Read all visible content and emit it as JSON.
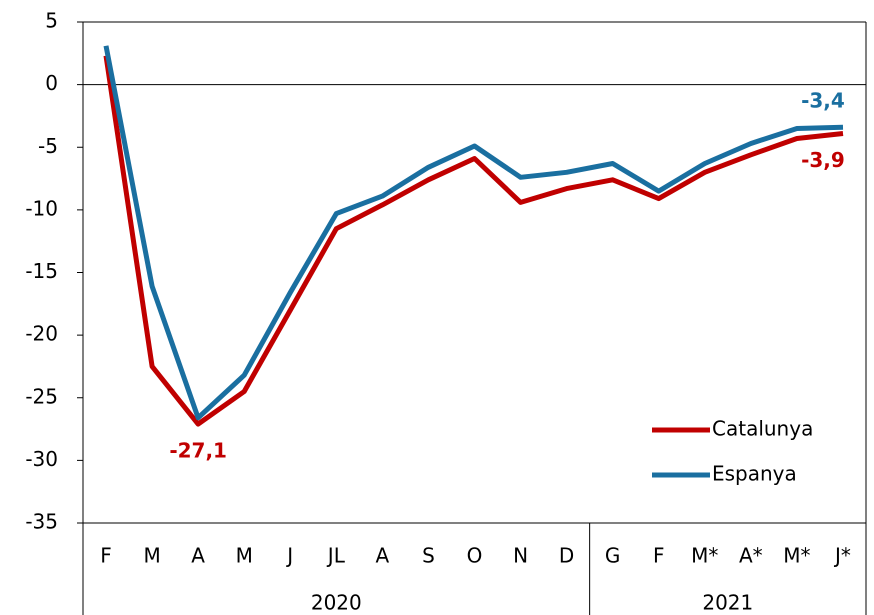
{
  "chart_data": {
    "type": "line",
    "categories": [
      "F",
      "M",
      "A",
      "M",
      "J",
      "JL",
      "A",
      "S",
      "O",
      "N",
      "D",
      "G",
      "F",
      "M*",
      "A*",
      "M*",
      "J*"
    ],
    "x_groups": [
      {
        "label": "2020",
        "count": 11
      },
      {
        "label": "2021",
        "count": 6
      }
    ],
    "series": [
      {
        "name": "Catalunya",
        "color": "#c00000",
        "values": [
          2.3,
          -22.5,
          -27.1,
          -24.5,
          -18,
          -11.5,
          -9.6,
          -7.6,
          -5.9,
          -9.4,
          -8.3,
          -7.6,
          -9.1,
          -7,
          -5.6,
          -4.3,
          -3.9
        ],
        "value_labels": [
          null,
          null,
          "-27,1",
          null,
          null,
          null,
          null,
          null,
          null,
          null,
          null,
          null,
          null,
          null,
          null,
          null,
          "-3,9"
        ]
      },
      {
        "name": "Espanya",
        "color": "#1a6fa0",
        "values": [
          3.1,
          -16.1,
          -26.6,
          -23.2,
          -16.6,
          -10.3,
          -8.9,
          -6.6,
          -4.9,
          -7.4,
          -7,
          -6.3,
          -8.5,
          -6.3,
          -4.7,
          -3.5,
          -3.4
        ],
        "value_labels": [
          null,
          null,
          null,
          null,
          null,
          null,
          null,
          null,
          null,
          null,
          null,
          null,
          null,
          null,
          null,
          null,
          "-3,4"
        ]
      }
    ],
    "ylim": [
      -35,
      5
    ],
    "yticks": [
      -35,
      -30,
      -25,
      -20,
      -15,
      -10,
      -5,
      0,
      5
    ],
    "grid": false,
    "legend": "lower right"
  }
}
